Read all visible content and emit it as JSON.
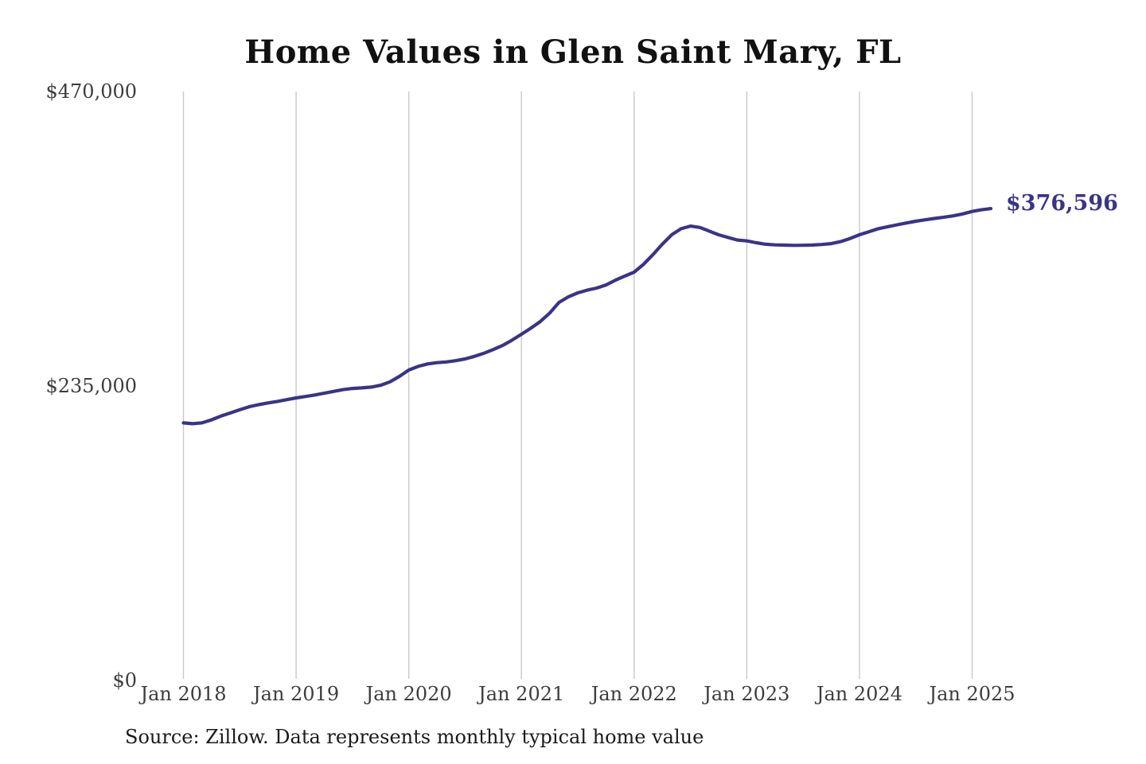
{
  "page": {
    "title": "Home Values in Glen Saint Mary, FL",
    "annotation_label": "$376,596",
    "source_note": "Source: Zillow. Data represents monthly typical home value",
    "colors": {
      "line": "#3a3486",
      "grid": "#c9c9c9",
      "title": "#111111",
      "axis_label": "#3d3d3d",
      "annotation": "#3a3486"
    }
  },
  "chart_data": {
    "type": "line",
    "title": "Home Values in Glen Saint Mary, FL",
    "xlabel": "",
    "ylabel": "",
    "x_start_month": "Jan 2018",
    "x_end_month": "Mar 2025",
    "x_tick_labels": [
      "Jan 2018",
      "Jan 2019",
      "Jan 2020",
      "Jan 2021",
      "Jan 2022",
      "Jan 2023",
      "Jan 2024",
      "Jan 2025"
    ],
    "x_tick_month_indices": [
      0,
      12,
      24,
      36,
      48,
      60,
      72,
      84
    ],
    "y_ticks": [
      {
        "label": "$0",
        "value": 0
      },
      {
        "label": "$235,000",
        "value": 235000
      },
      {
        "label": "$470,000",
        "value": 470000
      }
    ],
    "ylim": [
      0,
      470000
    ],
    "grid": "vertical-only",
    "legend": "none",
    "series": [
      {
        "name": "Monthly typical home value (USD)",
        "values": [
          205500,
          204900,
          205600,
          208000,
          211000,
          213500,
          216000,
          218400,
          220100,
          221500,
          222700,
          224100,
          225500,
          226600,
          227800,
          229200,
          230700,
          232100,
          233000,
          233500,
          234100,
          235600,
          238300,
          242600,
          247700,
          250600,
          252600,
          253600,
          254200,
          255200,
          256600,
          258600,
          261100,
          264100,
          267300,
          271600,
          276300,
          281100,
          286400,
          293100,
          301700,
          306200,
          309300,
          311500,
          313100,
          315600,
          319400,
          322700,
          325800,
          332100,
          339800,
          348100,
          355700,
          360500,
          362600,
          361500,
          358600,
          355700,
          353500,
          351500,
          350800,
          349300,
          348100,
          347600,
          347400,
          347200,
          347300,
          347500,
          347900,
          348600,
          350200,
          352700,
          355700,
          358100,
          360500,
          362100,
          363600,
          365100,
          366500,
          367600,
          368700,
          369700,
          370800,
          372300,
          374300,
          375600,
          376596
        ]
      }
    ],
    "end_annotation": {
      "label": "$376,596",
      "value": 376596
    }
  }
}
